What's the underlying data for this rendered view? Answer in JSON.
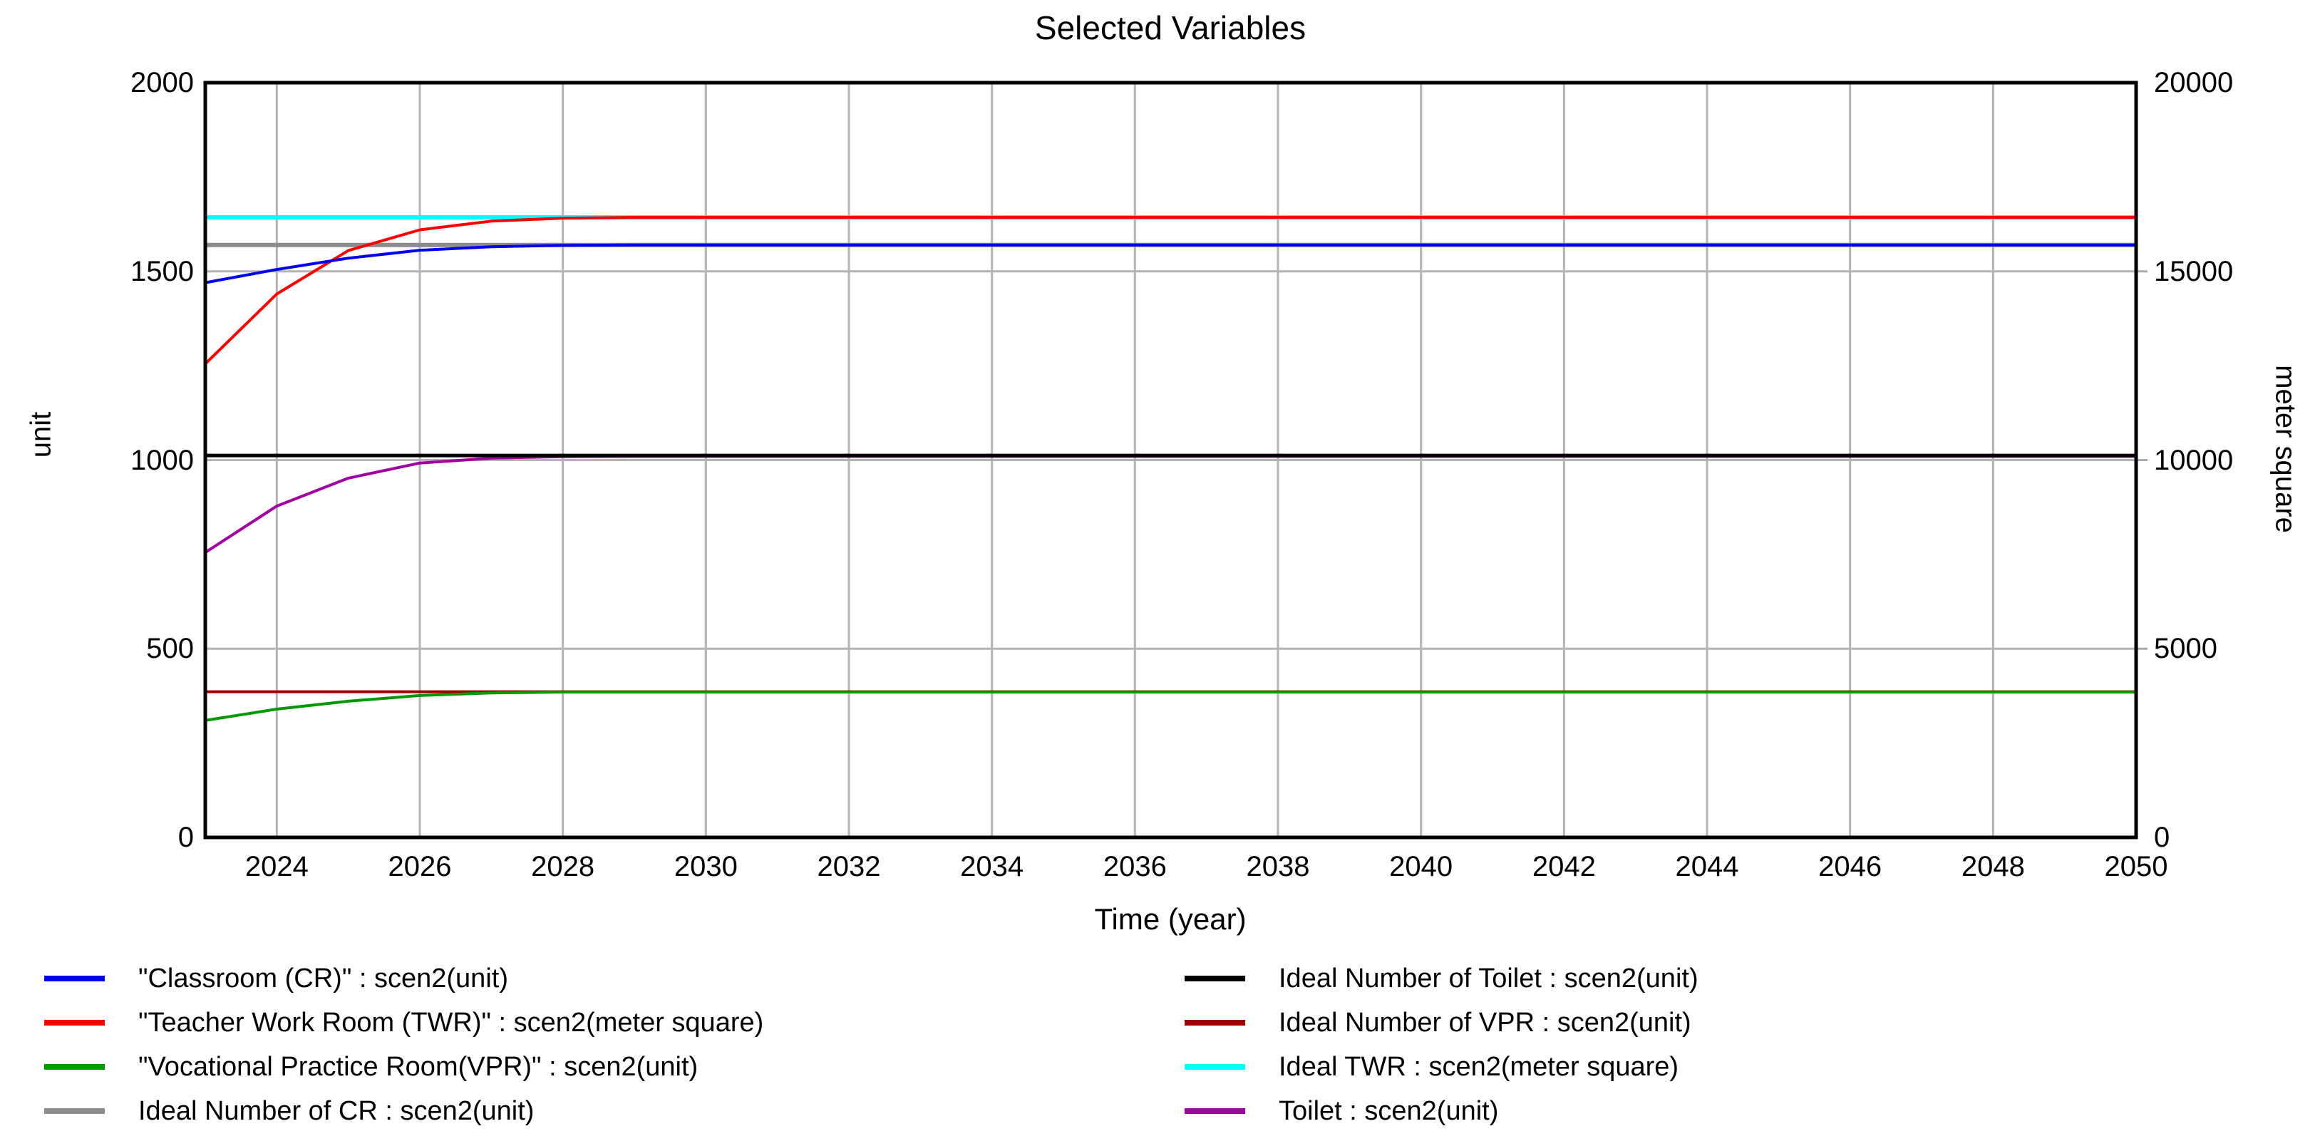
{
  "title": "Selected Variables",
  "chart_data": {
    "type": "line",
    "title": "Selected Variables",
    "xlabel": "Time (year)",
    "ylabel_left": "unit",
    "ylabel_right": "meter square",
    "x_range": [
      2023,
      2050
    ],
    "x_ticks": [
      "2024",
      "2026",
      "2028",
      "2030",
      "2032",
      "2034",
      "2036",
      "2038",
      "2040",
      "2042",
      "2044",
      "2046",
      "2048",
      "2050"
    ],
    "y_axis_left": {
      "label": "unit",
      "range": [
        0,
        2000
      ],
      "ticks": [
        "0",
        "500",
        "1000",
        "1500",
        "2000"
      ],
      "grid_values": [
        500,
        1000,
        1500
      ]
    },
    "y_axis_right": {
      "label": "meter square",
      "range": [
        0,
        20000
      ],
      "ticks": [
        "0",
        "5000",
        "10000",
        "15000",
        "20000"
      ],
      "outer_tick_values": [
        5000,
        10000,
        15000
      ]
    },
    "grid": true,
    "grid_color": "#b4b4b4",
    "border_color": "#000000",
    "legend_position": "bottom-two-columns",
    "years": [
      2023,
      2024,
      2025,
      2026,
      2027,
      2028,
      2029,
      2030,
      2031,
      2032,
      2033,
      2034,
      2035,
      2036,
      2037,
      2038,
      2039,
      2040,
      2041,
      2042,
      2043,
      2044,
      2045,
      2046,
      2047,
      2048,
      2049,
      2050
    ],
    "series": [
      {
        "label": "\"Classroom (CR)\" : scen2(unit)",
        "color": "#0000ee",
        "axis": "left",
        "width": 4,
        "values": [
          1470,
          1505,
          1535,
          1556,
          1565,
          1569,
          1570,
          1570,
          1570,
          1570,
          1570,
          1570,
          1570,
          1570,
          1570,
          1570,
          1570,
          1570,
          1570,
          1570,
          1570,
          1570,
          1570,
          1570,
          1570,
          1570,
          1570,
          1570
        ]
      },
      {
        "label": "\"Teacher Work Room (TWR)\" : scen2(meter square)",
        "color": "#ff0000",
        "axis": "right",
        "width": 4,
        "values": [
          12550,
          14400,
          15550,
          16100,
          16330,
          16410,
          16430,
          16430,
          16430,
          16430,
          16430,
          16430,
          16430,
          16430,
          16430,
          16430,
          16430,
          16430,
          16430,
          16430,
          16430,
          16430,
          16430,
          16430,
          16430,
          16430,
          16430,
          16430
        ]
      },
      {
        "label": "\"Vocational Practice Room(VPR)\" : scen2(unit)",
        "color": "#009900",
        "axis": "left",
        "width": 4,
        "values": [
          310,
          340,
          361,
          376,
          383,
          385,
          385,
          385,
          385,
          385,
          385,
          385,
          385,
          385,
          385,
          385,
          385,
          385,
          385,
          385,
          385,
          385,
          385,
          385,
          385,
          385,
          385,
          385
        ]
      },
      {
        "label": "Ideal Number of CR : scen2(unit)",
        "color": "#8c8c8c",
        "axis": "left",
        "width": 6,
        "constant": 1570
      },
      {
        "label": "Ideal Number of Toilet : scen2(unit)",
        "color": "#000000",
        "axis": "left",
        "width": 5,
        "constant": 1012
      },
      {
        "label": "Ideal Number of VPR : scen2(unit)",
        "color": "#990000",
        "axis": "left",
        "width": 4,
        "constant": 386
      },
      {
        "label": "Ideal TWR : scen2(meter square)",
        "color": "#00ffff",
        "axis": "right",
        "width": 6,
        "constant": 16430
      },
      {
        "label": "Toilet : scen2(unit)",
        "color": "#a000a0",
        "axis": "left",
        "width": 4,
        "values": [
          755,
          878,
          952,
          992,
          1005,
          1009,
          1010,
          1010,
          1010,
          1010,
          1010,
          1010,
          1010,
          1010,
          1010,
          1010,
          1010,
          1010,
          1010,
          1010,
          1010,
          1010,
          1010,
          1010,
          1010,
          1010,
          1010,
          1010
        ]
      }
    ],
    "draw_order": [
      6,
      3,
      5,
      7,
      4,
      2,
      1,
      0
    ]
  },
  "legend": {
    "columns": [
      [
        0,
        1,
        2,
        3
      ],
      [
        4,
        5,
        6,
        7
      ]
    ]
  }
}
